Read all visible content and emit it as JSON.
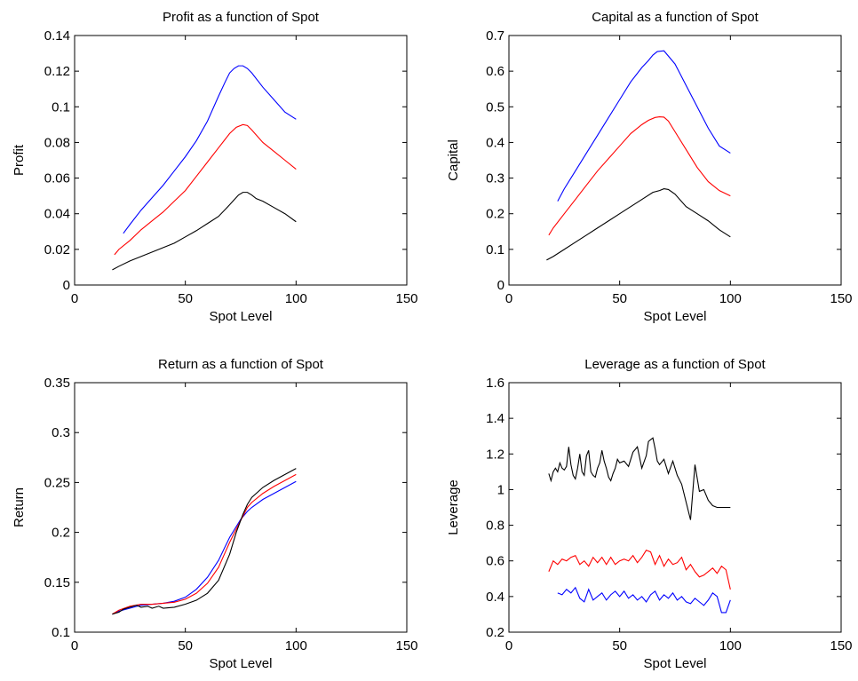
{
  "chart_data": [
    {
      "type": "line",
      "title": "Profit as a function of Spot",
      "xlabel": "Spot Level",
      "ylabel": "Profit",
      "xlim": [
        0,
        150
      ],
      "ylim": [
        0,
        0.14
      ],
      "xticks": [
        "0",
        "50",
        "100",
        "150"
      ],
      "yticks": [
        "0",
        "0.02",
        "0.04",
        "0.06",
        "0.08",
        "0.1",
        "0.12",
        "0.14"
      ],
      "grid": false,
      "series": [
        {
          "color": "#0000ff",
          "x": [
            22,
            25,
            30,
            35,
            40,
            45,
            50,
            55,
            60,
            65,
            68,
            70,
            72,
            74,
            76,
            78,
            80,
            85,
            90,
            95,
            100
          ],
          "y": [
            0.029,
            0.034,
            0.042,
            0.049,
            0.056,
            0.064,
            0.072,
            0.081,
            0.092,
            0.106,
            0.114,
            0.119,
            0.1215,
            0.123,
            0.123,
            0.1215,
            0.119,
            0.111,
            0.104,
            0.097,
            0.093
          ]
        },
        {
          "color": "#ff0000",
          "x": [
            18,
            20,
            25,
            30,
            35,
            40,
            45,
            50,
            55,
            60,
            65,
            70,
            73,
            76,
            78,
            80,
            85,
            90,
            95,
            100
          ],
          "y": [
            0.017,
            0.02,
            0.025,
            0.031,
            0.036,
            0.041,
            0.047,
            0.053,
            0.061,
            0.069,
            0.077,
            0.085,
            0.0885,
            0.09,
            0.0895,
            0.087,
            0.08,
            0.075,
            0.07,
            0.065
          ]
        },
        {
          "color": "#000000",
          "x": [
            17,
            20,
            25,
            30,
            35,
            40,
            45,
            50,
            55,
            60,
            65,
            70,
            74,
            76,
            78,
            80,
            82,
            85,
            90,
            95,
            100
          ],
          "y": [
            0.0085,
            0.0105,
            0.0135,
            0.016,
            0.0185,
            0.021,
            0.0235,
            0.027,
            0.0305,
            0.0345,
            0.0385,
            0.045,
            0.0505,
            0.052,
            0.052,
            0.0505,
            0.0485,
            0.047,
            0.0435,
            0.04,
            0.0355
          ]
        }
      ]
    },
    {
      "type": "line",
      "title": "Capital as a function of Spot",
      "xlabel": "Spot Level",
      "ylabel": "Capital",
      "xlim": [
        0,
        150
      ],
      "ylim": [
        0,
        0.7
      ],
      "xticks": [
        "0",
        "50",
        "100",
        "150"
      ],
      "yticks": [
        "0",
        "0.1",
        "0.2",
        "0.3",
        "0.4",
        "0.5",
        "0.6",
        "0.7"
      ],
      "grid": false,
      "series": [
        {
          "color": "#0000ff",
          "x": [
            22,
            25,
            30,
            35,
            40,
            45,
            50,
            55,
            60,
            63,
            65,
            67,
            70,
            75,
            80,
            85,
            90,
            95,
            100
          ],
          "y": [
            0.235,
            0.27,
            0.32,
            0.37,
            0.42,
            0.47,
            0.52,
            0.57,
            0.61,
            0.63,
            0.645,
            0.655,
            0.657,
            0.62,
            0.56,
            0.5,
            0.44,
            0.39,
            0.37
          ]
        },
        {
          "color": "#ff0000",
          "x": [
            18,
            20,
            25,
            30,
            35,
            40,
            45,
            50,
            55,
            60,
            63,
            66,
            68,
            70,
            72,
            75,
            80,
            85,
            90,
            95,
            100
          ],
          "y": [
            0.14,
            0.16,
            0.2,
            0.24,
            0.28,
            0.32,
            0.355,
            0.39,
            0.425,
            0.45,
            0.462,
            0.47,
            0.472,
            0.471,
            0.46,
            0.43,
            0.38,
            0.33,
            0.29,
            0.265,
            0.25
          ]
        },
        {
          "color": "#000000",
          "x": [
            17,
            20,
            25,
            30,
            35,
            40,
            45,
            50,
            55,
            60,
            65,
            68,
            70,
            72,
            75,
            80,
            85,
            90,
            95,
            100
          ],
          "y": [
            0.07,
            0.08,
            0.1,
            0.12,
            0.14,
            0.16,
            0.18,
            0.2,
            0.22,
            0.24,
            0.26,
            0.265,
            0.27,
            0.268,
            0.255,
            0.22,
            0.2,
            0.18,
            0.155,
            0.135
          ]
        }
      ]
    },
    {
      "type": "line",
      "title": "Return as a function of Spot",
      "xlabel": "Spot Level",
      "ylabel": "Return",
      "xlim": [
        0,
        150
      ],
      "ylim": [
        0.1,
        0.35
      ],
      "xticks": [
        "0",
        "50",
        "100",
        "150"
      ],
      "yticks": [
        "0.1",
        "0.15",
        "0.2",
        "0.25",
        "0.3",
        "0.35"
      ],
      "grid": false,
      "series": [
        {
          "color": "#0000ff",
          "x": [
            17,
            20,
            25,
            30,
            35,
            40,
            45,
            50,
            55,
            60,
            65,
            70,
            75,
            78,
            80,
            85,
            90,
            95,
            100
          ],
          "y": [
            0.118,
            0.121,
            0.124,
            0.127,
            0.128,
            0.129,
            0.131,
            0.135,
            0.143,
            0.155,
            0.172,
            0.195,
            0.213,
            0.221,
            0.225,
            0.233,
            0.239,
            0.245,
            0.251
          ]
        },
        {
          "color": "#ff0000",
          "x": [
            17,
            20,
            25,
            30,
            35,
            40,
            45,
            50,
            55,
            60,
            65,
            70,
            75,
            78,
            80,
            85,
            90,
            95,
            100
          ],
          "y": [
            0.118,
            0.122,
            0.126,
            0.128,
            0.128,
            0.129,
            0.13,
            0.133,
            0.139,
            0.149,
            0.165,
            0.19,
            0.212,
            0.225,
            0.23,
            0.239,
            0.246,
            0.252,
            0.258
          ]
        },
        {
          "color": "#000000",
          "x": [
            17,
            20,
            22,
            25,
            28,
            30,
            33,
            35,
            38,
            40,
            45,
            50,
            55,
            60,
            65,
            70,
            73,
            76,
            78,
            80,
            85,
            90,
            95,
            100
          ],
          "y": [
            0.118,
            0.12,
            0.123,
            0.125,
            0.127,
            0.125,
            0.126,
            0.124,
            0.126,
            0.124,
            0.125,
            0.128,
            0.132,
            0.139,
            0.152,
            0.178,
            0.2,
            0.218,
            0.228,
            0.235,
            0.245,
            0.252,
            0.258,
            0.264
          ]
        }
      ]
    },
    {
      "type": "line",
      "title": "Leverage as a function of Spot",
      "xlabel": "Spot Level",
      "ylabel": "Leverage",
      "xlim": [
        0,
        150
      ],
      "ylim": [
        0.2,
        1.6
      ],
      "xticks": [
        "0",
        "50",
        "100",
        "150"
      ],
      "yticks": [
        "0.2",
        "0.4",
        "0.6",
        "0.8",
        "1",
        "1.2",
        "1.4",
        "1.6"
      ],
      "grid": false,
      "series": [
        {
          "color": "#000000",
          "x": [
            18,
            19,
            20,
            21,
            22,
            23,
            24,
            25,
            26,
            27,
            28,
            29,
            30,
            31,
            32,
            33,
            34,
            35,
            36,
            37,
            38,
            39,
            40,
            41,
            42,
            43,
            44,
            45,
            46,
            47,
            48,
            49,
            50,
            52,
            54,
            56,
            58,
            60,
            62,
            63,
            64,
            65,
            66,
            67,
            68,
            70,
            72,
            74,
            76,
            78,
            80,
            82,
            84,
            86,
            88,
            90,
            92,
            94,
            96,
            98,
            100
          ],
          "y": [
            1.09,
            1.05,
            1.1,
            1.12,
            1.1,
            1.15,
            1.12,
            1.11,
            1.13,
            1.24,
            1.14,
            1.08,
            1.06,
            1.12,
            1.2,
            1.1,
            1.08,
            1.19,
            1.22,
            1.1,
            1.08,
            1.07,
            1.12,
            1.15,
            1.22,
            1.16,
            1.12,
            1.07,
            1.05,
            1.09,
            1.12,
            1.17,
            1.15,
            1.16,
            1.13,
            1.21,
            1.24,
            1.12,
            1.19,
            1.27,
            1.28,
            1.29,
            1.23,
            1.16,
            1.14,
            1.17,
            1.09,
            1.16,
            1.08,
            1.03,
            0.93,
            0.83,
            1.14,
            0.99,
            1.0,
            0.94,
            0.91,
            0.9,
            0.9,
            0.9,
            0.9
          ]
        },
        {
          "color": "#ff0000",
          "x": [
            18,
            20,
            22,
            24,
            26,
            28,
            30,
            32,
            34,
            36,
            38,
            40,
            42,
            44,
            46,
            48,
            50,
            52,
            54,
            56,
            58,
            60,
            62,
            64,
            66,
            68,
            70,
            72,
            74,
            76,
            78,
            80,
            82,
            84,
            86,
            88,
            90,
            92,
            94,
            96,
            98,
            100
          ],
          "y": [
            0.54,
            0.6,
            0.58,
            0.61,
            0.6,
            0.62,
            0.63,
            0.58,
            0.6,
            0.57,
            0.62,
            0.59,
            0.62,
            0.58,
            0.62,
            0.58,
            0.6,
            0.61,
            0.6,
            0.63,
            0.59,
            0.62,
            0.66,
            0.65,
            0.58,
            0.63,
            0.57,
            0.61,
            0.58,
            0.59,
            0.62,
            0.55,
            0.58,
            0.54,
            0.51,
            0.52,
            0.54,
            0.56,
            0.53,
            0.57,
            0.55,
            0.44
          ]
        },
        {
          "color": "#0000ff",
          "x": [
            22,
            24,
            26,
            28,
            30,
            32,
            34,
            36,
            38,
            40,
            42,
            44,
            46,
            48,
            50,
            52,
            54,
            56,
            58,
            60,
            62,
            64,
            66,
            68,
            70,
            72,
            74,
            76,
            78,
            80,
            82,
            84,
            86,
            88,
            90,
            92,
            94,
            96,
            98,
            100
          ],
          "y": [
            0.42,
            0.41,
            0.44,
            0.42,
            0.45,
            0.39,
            0.37,
            0.44,
            0.38,
            0.4,
            0.42,
            0.38,
            0.41,
            0.43,
            0.4,
            0.43,
            0.39,
            0.41,
            0.38,
            0.4,
            0.37,
            0.41,
            0.43,
            0.38,
            0.41,
            0.39,
            0.42,
            0.38,
            0.4,
            0.37,
            0.36,
            0.39,
            0.37,
            0.35,
            0.38,
            0.42,
            0.4,
            0.31,
            0.31,
            0.38
          ]
        }
      ]
    }
  ]
}
